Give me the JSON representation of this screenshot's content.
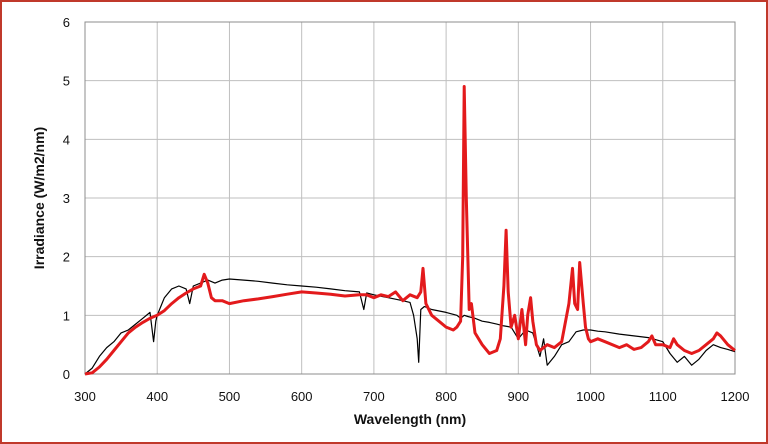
{
  "chart_data": {
    "type": "line",
    "title": "",
    "xlabel": "Wavelength (nm)",
    "ylabel": "Irradiance (W/m2/nm)",
    "xlim": [
      300,
      1200
    ],
    "ylim": [
      0,
      6
    ],
    "xticks": [
      300,
      400,
      500,
      600,
      700,
      800,
      900,
      1000,
      1100,
      1200
    ],
    "yticks": [
      0,
      1,
      2,
      3,
      4,
      5,
      6
    ],
    "grid": true,
    "legend": "none",
    "colors": {
      "black_series": "#000000",
      "red_series": "#e31a1c",
      "frame": "#c0392b",
      "grid": "#bfbfbf"
    },
    "series": [
      {
        "color": "black",
        "x": [
          300,
          310,
          320,
          330,
          340,
          350,
          360,
          370,
          380,
          390,
          395,
          398,
          400,
          405,
          410,
          420,
          430,
          440,
          445,
          450,
          460,
          470,
          480,
          490,
          500,
          520,
          540,
          560,
          580,
          600,
          620,
          640,
          660,
          680,
          686,
          690,
          700,
          720,
          740,
          750,
          755,
          760,
          762,
          765,
          770,
          780,
          800,
          815,
          820,
          825,
          830,
          840,
          850,
          860,
          870,
          880,
          890,
          900,
          910,
          920,
          930,
          935,
          940,
          950,
          960,
          970,
          980,
          990,
          1000,
          1010,
          1020,
          1040,
          1060,
          1080,
          1100,
          1110,
          1120,
          1130,
          1140,
          1150,
          1160,
          1170,
          1180,
          1190,
          1200
        ],
        "y": [
          0.0,
          0.1,
          0.3,
          0.45,
          0.55,
          0.7,
          0.75,
          0.85,
          0.95,
          1.05,
          0.55,
          0.9,
          1.0,
          1.15,
          1.3,
          1.45,
          1.5,
          1.45,
          1.2,
          1.5,
          1.55,
          1.6,
          1.55,
          1.6,
          1.62,
          1.6,
          1.58,
          1.55,
          1.52,
          1.5,
          1.48,
          1.45,
          1.42,
          1.4,
          1.1,
          1.38,
          1.35,
          1.3,
          1.25,
          1.22,
          1.0,
          0.6,
          0.2,
          1.1,
          1.15,
          1.1,
          1.05,
          1.0,
          0.95,
          1.0,
          0.98,
          0.95,
          0.9,
          0.88,
          0.85,
          0.82,
          0.8,
          0.6,
          0.75,
          0.7,
          0.3,
          0.6,
          0.15,
          0.3,
          0.5,
          0.55,
          0.72,
          0.75,
          0.75,
          0.73,
          0.72,
          0.68,
          0.65,
          0.62,
          0.55,
          0.35,
          0.2,
          0.3,
          0.15,
          0.25,
          0.4,
          0.5,
          0.45,
          0.42,
          0.38
        ]
      },
      {
        "color": "red",
        "x": [
          300,
          310,
          320,
          330,
          340,
          350,
          360,
          370,
          380,
          390,
          400,
          410,
          420,
          430,
          440,
          450,
          460,
          465,
          470,
          475,
          480,
          490,
          500,
          520,
          540,
          560,
          580,
          600,
          620,
          640,
          660,
          680,
          690,
          700,
          710,
          720,
          730,
          740,
          750,
          760,
          765,
          768,
          772,
          780,
          790,
          800,
          810,
          815,
          820,
          823,
          825,
          828,
          832,
          835,
          840,
          850,
          860,
          870,
          875,
          880,
          883,
          886,
          890,
          895,
          900,
          905,
          910,
          913,
          917,
          920,
          925,
          930,
          940,
          950,
          960,
          970,
          975,
          978,
          982,
          985,
          990,
          993,
          997,
          1000,
          1010,
          1020,
          1040,
          1050,
          1060,
          1070,
          1080,
          1085,
          1090,
          1100,
          1110,
          1115,
          1120,
          1130,
          1140,
          1150,
          1160,
          1170,
          1175,
          1180,
          1190,
          1200
        ],
        "y": [
          0.0,
          0.02,
          0.12,
          0.25,
          0.4,
          0.55,
          0.7,
          0.8,
          0.88,
          0.95,
          1.0,
          1.08,
          1.2,
          1.3,
          1.38,
          1.45,
          1.5,
          1.7,
          1.55,
          1.3,
          1.25,
          1.25,
          1.2,
          1.25,
          1.28,
          1.32,
          1.36,
          1.4,
          1.38,
          1.36,
          1.33,
          1.35,
          1.35,
          1.3,
          1.35,
          1.32,
          1.4,
          1.25,
          1.35,
          1.3,
          1.4,
          1.8,
          1.2,
          1.0,
          0.9,
          0.8,
          0.75,
          0.8,
          0.9,
          2.0,
          4.9,
          3.0,
          1.1,
          1.2,
          0.7,
          0.5,
          0.35,
          0.4,
          0.6,
          1.5,
          2.45,
          1.4,
          0.8,
          1.0,
          0.6,
          1.1,
          0.5,
          1.0,
          1.3,
          0.9,
          0.5,
          0.4,
          0.5,
          0.45,
          0.55,
          1.2,
          1.8,
          1.2,
          1.1,
          1.9,
          1.2,
          0.8,
          0.6,
          0.55,
          0.6,
          0.55,
          0.45,
          0.5,
          0.42,
          0.45,
          0.55,
          0.65,
          0.5,
          0.5,
          0.45,
          0.6,
          0.5,
          0.4,
          0.35,
          0.4,
          0.5,
          0.6,
          0.7,
          0.65,
          0.5,
          0.4
        ]
      }
    ]
  }
}
